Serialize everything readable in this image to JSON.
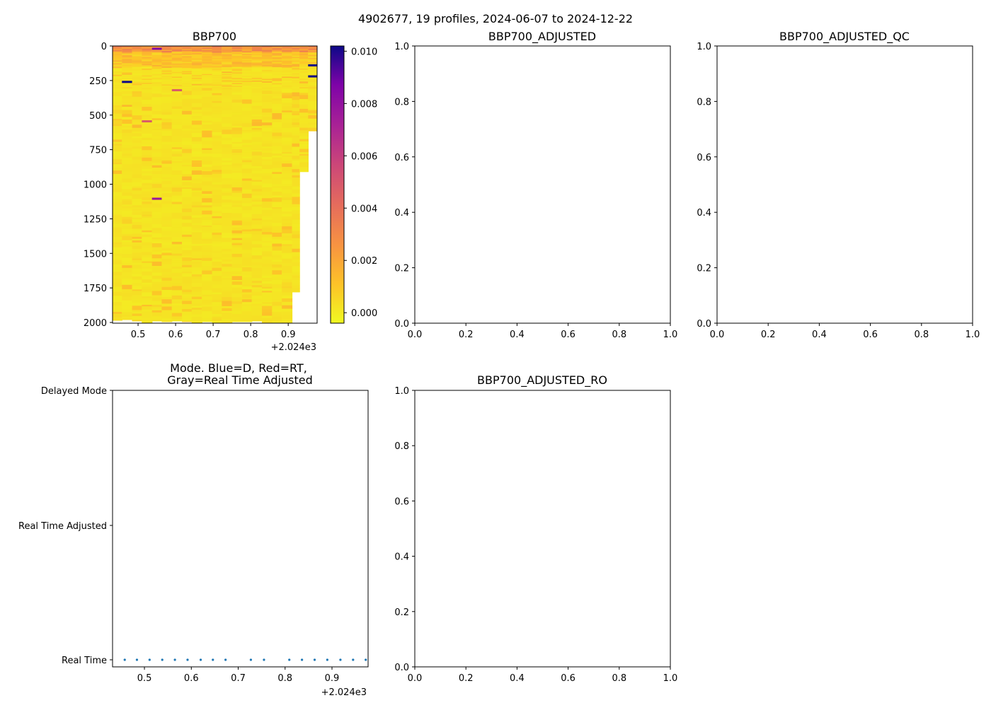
{
  "figure": {
    "suptitle": "4902677, 19 profiles, 2024-06-07 to 2024-12-22"
  },
  "colormap": {
    "name": "plasma_r",
    "low": "#f0f921",
    "mid": "#cc4778",
    "high": "#0d0887"
  },
  "chart_data": [
    {
      "id": "bbp700",
      "type": "heatmap",
      "title": "BBP700",
      "xlabel": "",
      "ylabel": "",
      "x_offset_label": "+2.024e3",
      "xlim": [
        0.432,
        0.977
      ],
      "ylim": [
        2005,
        0
      ],
      "xticks": [
        "0.5",
        "0.6",
        "0.7",
        "0.8",
        "0.9"
      ],
      "yticks": [
        "0",
        "250",
        "500",
        "750",
        "1000",
        "1250",
        "1500",
        "1750",
        "2000"
      ],
      "colorbar": {
        "range": [
          -0.0004,
          0.0102
        ],
        "ticks": [
          "0.000",
          "0.002",
          "0.004",
          "0.006",
          "0.008",
          "0.010"
        ]
      },
      "columns": [
        {
          "x0": 0.432,
          "x1": 0.457,
          "max_depth": 1985
        },
        {
          "x0": 0.457,
          "x1": 0.484,
          "max_depth": 1980
        },
        {
          "x0": 0.484,
          "x1": 0.51,
          "max_depth": 1990
        },
        {
          "x0": 0.51,
          "x1": 0.537,
          "max_depth": 2005
        },
        {
          "x0": 0.537,
          "x1": 0.563,
          "max_depth": 1990
        },
        {
          "x0": 0.563,
          "x1": 0.59,
          "max_depth": 1995
        },
        {
          "x0": 0.59,
          "x1": 0.617,
          "max_depth": 1990
        },
        {
          "x0": 0.617,
          "x1": 0.643,
          "max_depth": 1995
        },
        {
          "x0": 0.643,
          "x1": 0.67,
          "max_depth": 2005
        },
        {
          "x0": 0.67,
          "x1": 0.697,
          "max_depth": 1995
        },
        {
          "x0": 0.697,
          "x1": 0.723,
          "max_depth": 2000
        },
        {
          "x0": 0.723,
          "x1": 0.75,
          "max_depth": 2000
        },
        {
          "x0": 0.75,
          "x1": 0.777,
          "max_depth": 1995
        },
        {
          "x0": 0.777,
          "x1": 0.803,
          "max_depth": 1995
        },
        {
          "x0": 0.803,
          "x1": 0.83,
          "max_depth": 1990
        },
        {
          "x0": 0.83,
          "x1": 0.857,
          "max_depth": 2000
        },
        {
          "x0": 0.857,
          "x1": 0.883,
          "max_depth": 2000
        },
        {
          "x0": 0.883,
          "x1": 0.91,
          "max_depth": 2000
        },
        {
          "x0": 0.91,
          "x1": 0.93,
          "max_depth": 1780
        },
        {
          "x0": 0.93,
          "x1": 0.953,
          "max_depth": 910
        },
        {
          "x0": 0.953,
          "x1": 0.977,
          "max_depth": 615
        }
      ],
      "anomalies": [
        {
          "x0": 0.457,
          "x1": 0.484,
          "depth": 260,
          "value": 0.0102
        },
        {
          "x0": 0.537,
          "x1": 0.563,
          "depth": 20,
          "value": 0.0085
        },
        {
          "x0": 0.537,
          "x1": 0.563,
          "depth": 1105,
          "value": 0.0078
        },
        {
          "x0": 0.59,
          "x1": 0.617,
          "depth": 320,
          "value": 0.0048
        },
        {
          "x0": 0.51,
          "x1": 0.537,
          "depth": 545,
          "value": 0.0048
        },
        {
          "x0": 0.953,
          "x1": 0.977,
          "depth": 140,
          "value": 0.0102
        },
        {
          "x0": 0.953,
          "x1": 0.977,
          "depth": 220,
          "value": 0.0102
        }
      ]
    },
    {
      "id": "adjusted",
      "type": "scatter",
      "title": "BBP700_ADJUSTED",
      "xlim": [
        0,
        1
      ],
      "ylim": [
        0,
        1
      ],
      "xticks": [
        "0.0",
        "0.2",
        "0.4",
        "0.6",
        "0.8",
        "1.0"
      ],
      "yticks": [
        "0.0",
        "0.2",
        "0.4",
        "0.6",
        "0.8",
        "1.0"
      ]
    },
    {
      "id": "adjusted_qc",
      "type": "scatter",
      "title": "BBP700_ADJUSTED_QC",
      "xlim": [
        0,
        1
      ],
      "ylim": [
        0,
        1
      ],
      "xticks": [
        "0.0",
        "0.2",
        "0.4",
        "0.6",
        "0.8",
        "1.0"
      ],
      "yticks": [
        "0.0",
        "0.2",
        "0.4",
        "0.6",
        "0.8",
        "1.0"
      ]
    },
    {
      "id": "mode",
      "type": "scatter",
      "title_lines": [
        "Mode. Blue=D, Red=RT,",
        "Gray=Real Time Adjusted"
      ],
      "x_offset_label": "+2.024e3",
      "xlim": [
        0.432,
        0.977
      ],
      "xticks": [
        "0.5",
        "0.6",
        "0.7",
        "0.8",
        "0.9"
      ],
      "ycategories": [
        "Real Time",
        "Real Time Adjusted",
        "Delayed Mode"
      ],
      "point_color": "#1f77b4",
      "points_x": [
        0.458,
        0.484,
        0.511,
        0.538,
        0.565,
        0.592,
        0.62,
        0.646,
        0.673,
        0.727,
        0.755,
        0.809,
        0.836,
        0.863,
        0.89,
        0.918,
        0.945,
        0.972
      ]
    },
    {
      "id": "adjusted_ro",
      "type": "scatter",
      "title": "BBP700_ADJUSTED_RO",
      "xlim": [
        0,
        1
      ],
      "ylim": [
        0,
        1
      ],
      "xticks": [
        "0.0",
        "0.2",
        "0.4",
        "0.6",
        "0.8",
        "1.0"
      ],
      "yticks": [
        "0.0",
        "0.2",
        "0.4",
        "0.6",
        "0.8",
        "1.0"
      ]
    }
  ]
}
